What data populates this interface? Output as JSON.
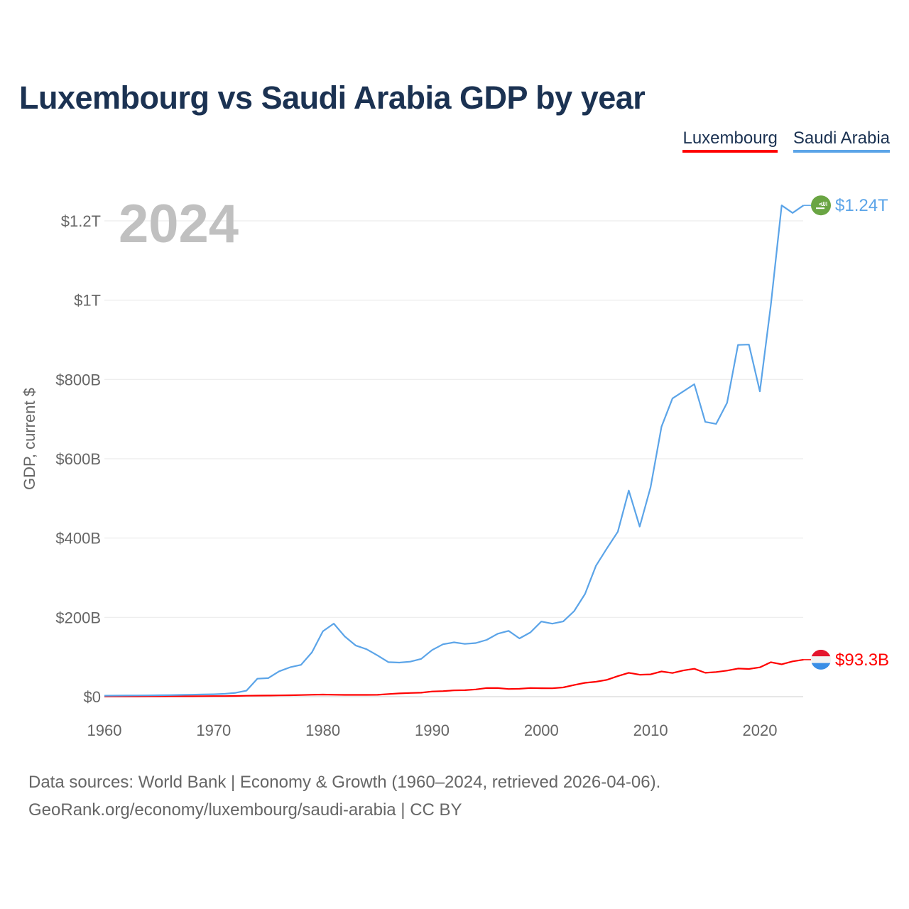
{
  "title": "Luxembourg vs Saudi Arabia GDP by year",
  "current_year": "2024",
  "legend": [
    {
      "label": "Luxembourg",
      "color": "#ff0000"
    },
    {
      "label": "Saudi Arabia",
      "color": "#5ba4e8"
    }
  ],
  "footer": {
    "line1": "Data sources: World Bank | Economy & Growth (1960–2024, retrieved 2026-04-06).",
    "line2": "GeoRank.org/economy/luxembourg/saudi-arabia | CC BY"
  },
  "chart_data": {
    "type": "line",
    "title": "Luxembourg vs Saudi Arabia GDP by year",
    "xlabel": "",
    "ylabel": "GDP, current $",
    "xlim": [
      1960,
      2024
    ],
    "ylim": [
      0,
      1300
    ],
    "y_unit": "billion USD",
    "x_ticks": [
      1960,
      1970,
      1980,
      1990,
      2000,
      2010,
      2020
    ],
    "y_ticks": [
      {
        "value": 0,
        "label": "$0"
      },
      {
        "value": 200,
        "label": "$200B"
      },
      {
        "value": 400,
        "label": "$400B"
      },
      {
        "value": 600,
        "label": "$600B"
      },
      {
        "value": 800,
        "label": "$800B"
      },
      {
        "value": 1000,
        "label": "$1T"
      },
      {
        "value": 1200,
        "label": "$1.2T"
      }
    ],
    "grid": true,
    "legend_position": "top-right",
    "x": [
      1960,
      1961,
      1962,
      1963,
      1964,
      1965,
      1966,
      1967,
      1968,
      1969,
      1970,
      1971,
      1972,
      1973,
      1974,
      1975,
      1976,
      1977,
      1978,
      1979,
      1980,
      1981,
      1982,
      1983,
      1984,
      1985,
      1986,
      1987,
      1988,
      1989,
      1990,
      1991,
      1992,
      1993,
      1994,
      1995,
      1996,
      1997,
      1998,
      1999,
      2000,
      2001,
      2002,
      2003,
      2004,
      2005,
      2006,
      2007,
      2008,
      2009,
      2010,
      2011,
      2012,
      2013,
      2014,
      2015,
      2016,
      2017,
      2018,
      2019,
      2020,
      2021,
      2022,
      2023,
      2024
    ],
    "series": [
      {
        "name": "Luxembourg",
        "color": "#ff0000",
        "end_label": "$93.3B",
        "values": [
          0.7,
          0.7,
          0.8,
          0.8,
          0.9,
          0.9,
          1.0,
          1.0,
          1.1,
          1.2,
          1.4,
          1.5,
          1.8,
          2.3,
          2.7,
          2.9,
          3.3,
          3.6,
          4.2,
          4.9,
          5.4,
          4.8,
          4.4,
          4.4,
          4.4,
          4.6,
          6.6,
          8.3,
          9.4,
          10.0,
          13.1,
          14.0,
          16.0,
          16.3,
          18.3,
          21.9,
          21.7,
          19.3,
          19.9,
          21.9,
          21.3,
          21.2,
          23.3,
          29.4,
          34.9,
          37.6,
          42.5,
          51.8,
          60.1,
          55.3,
          56.2,
          63.5,
          59.7,
          66.0,
          70.4,
          60.1,
          62.2,
          65.7,
          71.0,
          69.8,
          74.0,
          86.9,
          81.6,
          89.1,
          93.3
        ]
      },
      {
        "name": "Saudi Arabia",
        "color": "#5ba4e8",
        "end_label": "$1.24T",
        "values": [
          2.5,
          2.7,
          2.9,
          3.1,
          3.3,
          3.6,
          4.0,
          4.4,
          5.0,
          5.5,
          6.0,
          7.2,
          9.7,
          15.0,
          45.4,
          46.8,
          64.0,
          74.2,
          80.3,
          112.0,
          165.0,
          184.3,
          152.0,
          129.2,
          119.6,
          104.0,
          87.0,
          86.0,
          88.3,
          95.3,
          117.6,
          132.2,
          137.1,
          133.0,
          135.2,
          143.3,
          158.7,
          166.0,
          146.8,
          162.0,
          189.5,
          184.1,
          189.6,
          215.8,
          259.0,
          330.0,
          374.0,
          416.0,
          520.0,
          429.0,
          528.0,
          681.0,
          752.0,
          770.0,
          788.0,
          693.0,
          688.0,
          741.0,
          887.0,
          888.0,
          770.0,
          987.0,
          1239.0,
          1220.0,
          1239.0
        ]
      }
    ]
  }
}
